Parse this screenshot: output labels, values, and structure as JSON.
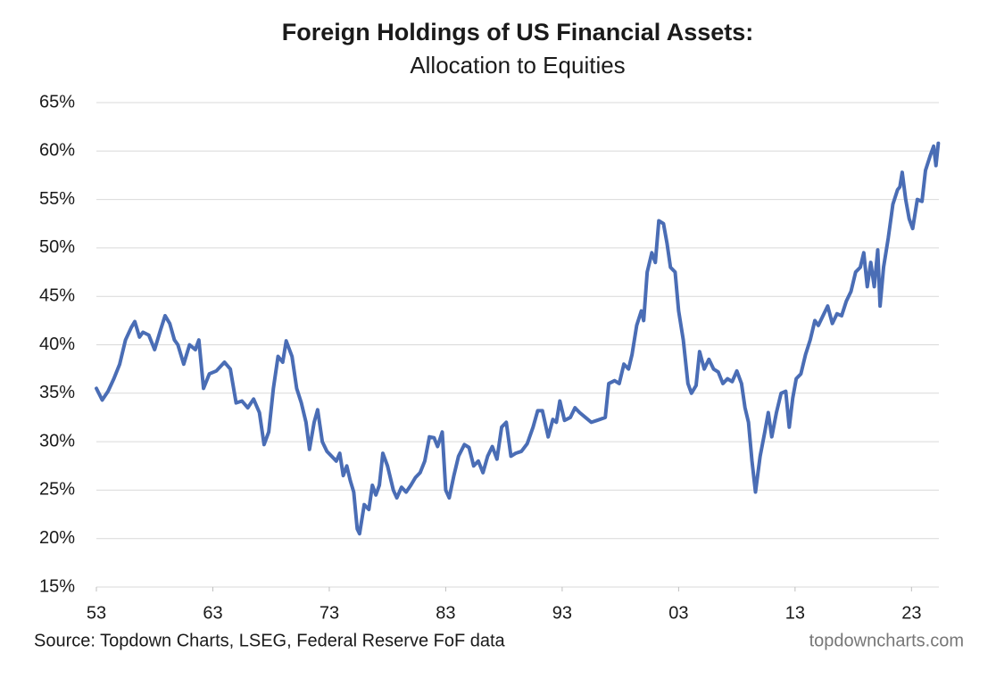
{
  "chart_data": {
    "type": "line",
    "title": "Foreign Holdings of US Financial Assets:",
    "subtitle": "Allocation to Equities",
    "source": "Source: Topdown Charts, LSEG, Federal Reserve FoF data",
    "watermark": "topdowncharts.com",
    "color": "#4a6db5",
    "grid": true,
    "xlim": [
      1953,
      2025.35
    ],
    "ylim": [
      15,
      65
    ],
    "xticks": [
      {
        "value": 1953,
        "label": "53"
      },
      {
        "value": 1963,
        "label": "63"
      },
      {
        "value": 1973,
        "label": "73"
      },
      {
        "value": 1983,
        "label": "83"
      },
      {
        "value": 1993,
        "label": "93"
      },
      {
        "value": 2003,
        "label": "03"
      },
      {
        "value": 2013,
        "label": "13"
      },
      {
        "value": 2023,
        "label": "23"
      }
    ],
    "yticks": [
      {
        "value": 15,
        "label": "15%"
      },
      {
        "value": 20,
        "label": "20%"
      },
      {
        "value": 25,
        "label": "25%"
      },
      {
        "value": 30,
        "label": "30%"
      },
      {
        "value": 35,
        "label": "35%"
      },
      {
        "value": 40,
        "label": "40%"
      },
      {
        "value": 45,
        "label": "45%"
      },
      {
        "value": 50,
        "label": "50%"
      },
      {
        "value": 55,
        "label": "55%"
      },
      {
        "value": 60,
        "label": "60%"
      },
      {
        "value": 65,
        "label": "65%"
      }
    ],
    "x": [
      1953,
      1953.5,
      1954,
      1954.5,
      1955,
      1955.5,
      1956,
      1956.3,
      1956.7,
      1957,
      1957.5,
      1958,
      1958.5,
      1958.9,
      1959.3,
      1959.7,
      1960,
      1960.5,
      1961,
      1961.5,
      1961.8,
      1962.2,
      1962.7,
      1963.3,
      1964,
      1964.5,
      1965,
      1965.5,
      1966,
      1966.5,
      1967,
      1967.4,
      1967.8,
      1968.2,
      1968.6,
      1969,
      1969.3,
      1969.8,
      1970.2,
      1970.6,
      1971,
      1971.3,
      1971.7,
      1972,
      1972.4,
      1972.8,
      1973.2,
      1973.6,
      1973.9,
      1974.2,
      1974.5,
      1974.8,
      1975.1,
      1975.4,
      1975.6,
      1976,
      1976.4,
      1976.7,
      1977,
      1977.3,
      1977.6,
      1978,
      1978.5,
      1978.8,
      1979.2,
      1979.6,
      1980,
      1980.4,
      1980.8,
      1981.2,
      1981.6,
      1982,
      1982.3,
      1982.7,
      1983,
      1983.3,
      1983.7,
      1984.1,
      1984.6,
      1985,
      1985.4,
      1985.8,
      1986.2,
      1986.6,
      1987,
      1987.4,
      1987.8,
      1988.2,
      1988.6,
      1989,
      1989.5,
      1990,
      1990.5,
      1990.9,
      1991.3,
      1991.8,
      1992.2,
      1992.5,
      1992.8,
      1993.2,
      1993.7,
      1994.1,
      1994.5,
      1995,
      1995.5,
      1996,
      1996.7,
      1997,
      1997.5,
      1997.9,
      1998.3,
      1998.7,
      1999,
      1999.4,
      1999.8,
      2000,
      2000.3,
      2000.7,
      2001,
      2001.3,
      2001.7,
      2002,
      2002.3,
      2002.7,
      2003,
      2003.4,
      2003.8,
      2004.1,
      2004.5,
      2004.8,
      2005.2,
      2005.6,
      2006,
      2006.4,
      2006.8,
      2007.2,
      2007.6,
      2008,
      2008.4,
      2008.7,
      2009,
      2009.3,
      2009.6,
      2010,
      2010.4,
      2010.7,
      2011,
      2011.4,
      2011.8,
      2012.2,
      2012.5,
      2012.8,
      2013.1,
      2013.5,
      2013.9,
      2014.3,
      2014.7,
      2015,
      2015.4,
      2015.8,
      2016.2,
      2016.6,
      2017,
      2017.4,
      2017.8,
      2018.2,
      2018.6,
      2018.9,
      2019.2,
      2019.5,
      2019.8,
      2020.1,
      2020.3,
      2020.6,
      2021,
      2021.4,
      2021.8,
      2022,
      2022.2,
      2022.5,
      2022.8,
      2023.1,
      2023.5,
      2023.9,
      2024.2,
      2024.6,
      2024.9,
      2025.1,
      2025.3
    ],
    "values": [
      35.5,
      34.3,
      35.2,
      36.5,
      38,
      40.5,
      41.8,
      42.4,
      40.8,
      41.3,
      41,
      39.5,
      41.5,
      43,
      42.2,
      40.5,
      40,
      38,
      40,
      39.5,
      40.5,
      35.5,
      37,
      37.3,
      38.2,
      37.5,
      34,
      34.2,
      33.5,
      34.4,
      33,
      29.7,
      31,
      35.5,
      38.8,
      38.2,
      40.4,
      38.8,
      35.5,
      34,
      32,
      29.2,
      32,
      33.3,
      30,
      29,
      28.5,
      28,
      28.8,
      26.5,
      27.5,
      26,
      24.8,
      21,
      20.5,
      23.5,
      23,
      25.5,
      24.5,
      25.5,
      28.8,
      27.5,
      25,
      24.2,
      25.3,
      24.8,
      25.5,
      26.3,
      26.8,
      28,
      30.5,
      30.4,
      29.5,
      31,
      25,
      24.2,
      26.5,
      28.5,
      29.7,
      29.4,
      27.5,
      28,
      26.8,
      28.5,
      29.5,
      28.2,
      31.5,
      32,
      28.5,
      28.8,
      29,
      29.8,
      31.5,
      33.2,
      33.2,
      30.5,
      32.3,
      32,
      34.2,
      32.2,
      32.5,
      33.5,
      33,
      32.5,
      32,
      32.2,
      32.5,
      36,
      36.3,
      36,
      38,
      37.5,
      39,
      42,
      43.5,
      42.5,
      47.5,
      49.5,
      48.5,
      52.8,
      52.5,
      50.5,
      48,
      47.5,
      43.5,
      40.5,
      36,
      35,
      35.8,
      39.3,
      37.5,
      38.5,
      37.5,
      37.2,
      36,
      36.5,
      36.2,
      37.3,
      36,
      33.5,
      32,
      28,
      24.8,
      28.5,
      31,
      33,
      30.5,
      33,
      35,
      35.2,
      31.5,
      34.5,
      36.5,
      37,
      39,
      40.5,
      42.5,
      42,
      43,
      44,
      42.2,
      43.2,
      43,
      44.5,
      45.5,
      47.5,
      48,
      49.5,
      46,
      48.5,
      46,
      49.8,
      44,
      48,
      51,
      54.5,
      56,
      56.3,
      57.8,
      55,
      53,
      52,
      55,
      54.8,
      58,
      59.5,
      60.5,
      58.5,
      60.8
    ]
  }
}
